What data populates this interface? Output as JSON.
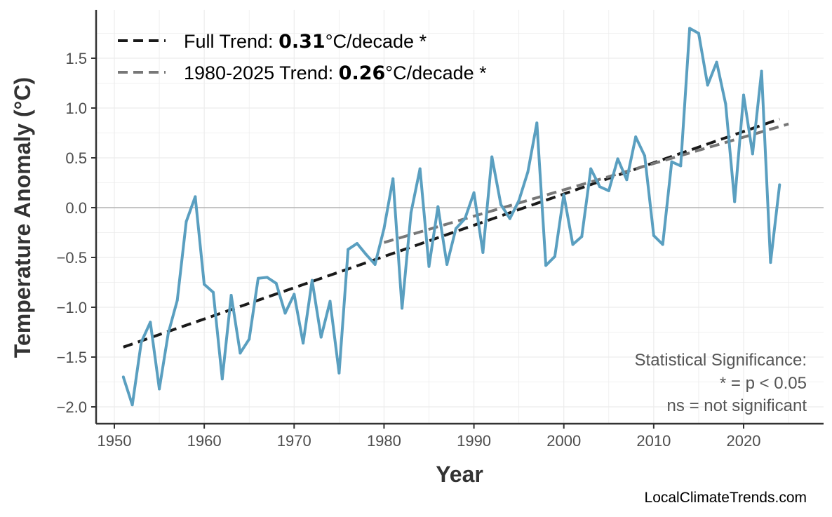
{
  "chart_data": {
    "type": "line",
    "xlabel": "Year",
    "ylabel": "Temperature Anomaly (°C)",
    "xlim": [
      1948,
      2029
    ],
    "ylim": [
      -2.15,
      1.9
    ],
    "x_ticks": [
      "1950",
      "1960",
      "1970",
      "1980",
      "1990",
      "2000",
      "2010",
      "2020"
    ],
    "y_ticks": [
      "−2.0",
      "−1.5",
      "−1.0",
      "−0.5",
      "0.0",
      "0.5",
      "1.0",
      "1.5"
    ],
    "grid": true,
    "zero_line": true,
    "legend_position": "top-left",
    "series_color": "#5a9fc0",
    "x": [
      1951,
      1952,
      1953,
      1954,
      1955,
      1956,
      1957,
      1958,
      1959,
      1960,
      1961,
      1962,
      1963,
      1964,
      1965,
      1966,
      1967,
      1968,
      1969,
      1970,
      1971,
      1972,
      1973,
      1974,
      1975,
      1976,
      1977,
      1978,
      1979,
      1980,
      1981,
      1982,
      1983,
      1984,
      1985,
      1986,
      1987,
      1988,
      1989,
      1990,
      1991,
      1992,
      1993,
      1994,
      1995,
      1996,
      1997,
      1998,
      1999,
      2000,
      2001,
      2002,
      2003,
      2004,
      2005,
      2006,
      2007,
      2008,
      2009,
      2010,
      2011,
      2012,
      2013,
      2014,
      2015,
      2016,
      2017,
      2018,
      2019,
      2020,
      2021,
      2022,
      2023,
      2024
    ],
    "values": [
      -1.7,
      -1.98,
      -1.35,
      -1.15,
      -1.82,
      -1.26,
      -0.93,
      -0.14,
      0.11,
      -0.77,
      -0.85,
      -1.72,
      -0.88,
      -1.46,
      -1.32,
      -0.71,
      -0.7,
      -0.76,
      -1.06,
      -0.87,
      -1.36,
      -0.73,
      -1.3,
      -0.94,
      -1.66,
      -0.42,
      -0.36,
      -0.47,
      -0.57,
      -0.21,
      0.29,
      -1.01,
      -0.05,
      0.39,
      -0.59,
      0.01,
      -0.57,
      -0.21,
      -0.11,
      0.15,
      -0.45,
      0.51,
      0.03,
      -0.11,
      0.07,
      0.36,
      0.85,
      -0.58,
      -0.49,
      0.13,
      -0.37,
      -0.29,
      0.39,
      0.21,
      0.17,
      0.49,
      0.28,
      0.71,
      0.52,
      -0.28,
      -0.37,
      0.46,
      0.42,
      1.8,
      1.75,
      1.23,
      1.46,
      1.04,
      0.06,
      1.13,
      0.54,
      1.37,
      -0.55,
      0.23
    ],
    "trends": [
      {
        "label_prefix": "Full Trend: ",
        "value": "0.31",
        "label_suffix": "°C/decade *",
        "color": "#1a1a1a",
        "x": [
          1951,
          2024
        ],
        "y": [
          -1.4,
          0.89
        ]
      },
      {
        "label_prefix": "1980-2025 Trend: ",
        "value": "0.26",
        "label_suffix": "°C/decade *",
        "color": "#777777",
        "x": [
          1980,
          2025
        ],
        "y": [
          -0.35,
          0.84
        ]
      }
    ]
  },
  "annotation": {
    "line1": "Statistical Significance:",
    "line2": "* = p < 0.05",
    "line3": "ns = not significant"
  },
  "credit": "LocalClimateTrends.com"
}
